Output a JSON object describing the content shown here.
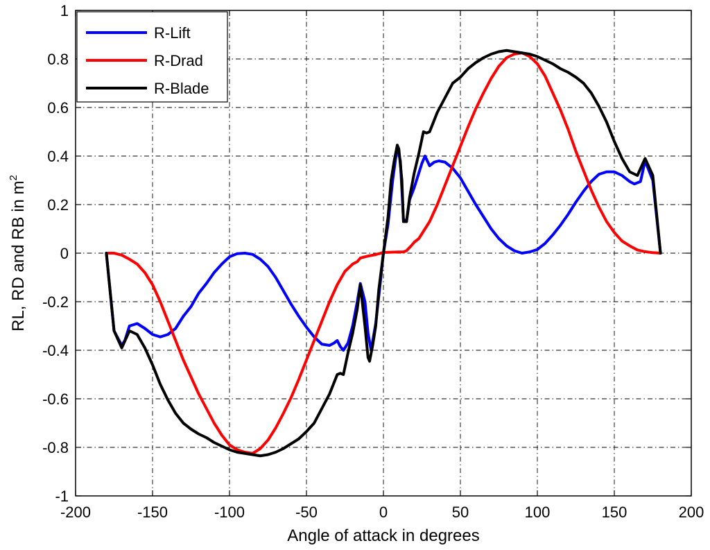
{
  "chart_data": {
    "type": "line",
    "xlabel": "Angle of attack in degrees",
    "ylabel": "RL, RD and RB in m",
    "ylabel_superscript": "2",
    "xlim": [
      -200,
      200
    ],
    "ylim": [
      -1,
      1
    ],
    "xticks": [
      -200,
      -150,
      -100,
      -50,
      0,
      50,
      100,
      150,
      200
    ],
    "yticks": [
      -1,
      -0.8,
      -0.6,
      -0.4,
      -0.2,
      0,
      0.2,
      0.4,
      0.6,
      0.8,
      1
    ],
    "xtick_labels": [
      "-200",
      "-150",
      "-100",
      "-50",
      "0",
      "50",
      "100",
      "150",
      "200"
    ],
    "ytick_labels": [
      "-1",
      "-0.8",
      "-0.6",
      "-0.4",
      "-0.2",
      "0",
      "0.2",
      "0.4",
      "0.6",
      "0.8",
      "1"
    ],
    "grid": true,
    "legend_position": "top-left",
    "series": [
      {
        "name": "R-Lift",
        "color": "#0000ff",
        "points": [
          [
            -180,
            0
          ],
          [
            -175,
            -0.32
          ],
          [
            -170,
            -0.38
          ],
          [
            -168,
            -0.36
          ],
          [
            -165,
            -0.3
          ],
          [
            -160,
            -0.29
          ],
          [
            -155,
            -0.31
          ],
          [
            -150,
            -0.335
          ],
          [
            -145,
            -0.345
          ],
          [
            -140,
            -0.335
          ],
          [
            -135,
            -0.31
          ],
          [
            -130,
            -0.26
          ],
          [
            -125,
            -0.22
          ],
          [
            -120,
            -0.165
          ],
          [
            -115,
            -0.125
          ],
          [
            -110,
            -0.08
          ],
          [
            -105,
            -0.045
          ],
          [
            -100,
            -0.015
          ],
          [
            -95,
            -0.002
          ],
          [
            -90,
            0
          ],
          [
            -85,
            -0.005
          ],
          [
            -80,
            -0.025
          ],
          [
            -75,
            -0.055
          ],
          [
            -70,
            -0.1
          ],
          [
            -65,
            -0.155
          ],
          [
            -60,
            -0.21
          ],
          [
            -55,
            -0.26
          ],
          [
            -50,
            -0.305
          ],
          [
            -45,
            -0.345
          ],
          [
            -40,
            -0.375
          ],
          [
            -35,
            -0.38
          ],
          [
            -32,
            -0.37
          ],
          [
            -30,
            -0.36
          ],
          [
            -28,
            -0.385
          ],
          [
            -26,
            -0.4
          ],
          [
            -23,
            -0.37
          ],
          [
            -20,
            -0.3
          ],
          [
            -17,
            -0.2
          ],
          [
            -15,
            -0.125
          ],
          [
            -12,
            -0.2
          ],
          [
            -10,
            -0.33
          ],
          [
            -8,
            -0.4
          ],
          [
            -5,
            -0.29
          ],
          [
            -2,
            -0.12
          ],
          [
            0,
            0
          ],
          [
            3,
            0.12
          ],
          [
            6,
            0.3
          ],
          [
            9,
            0.44
          ],
          [
            11,
            0.38
          ],
          [
            13,
            0.14
          ],
          [
            15,
            0.13
          ],
          [
            17,
            0.22
          ],
          [
            20,
            0.27
          ],
          [
            23,
            0.33
          ],
          [
            25,
            0.37
          ],
          [
            27,
            0.4
          ],
          [
            30,
            0.36
          ],
          [
            33,
            0.375
          ],
          [
            36,
            0.38
          ],
          [
            40,
            0.375
          ],
          [
            45,
            0.35
          ],
          [
            50,
            0.31
          ],
          [
            55,
            0.255
          ],
          [
            60,
            0.2
          ],
          [
            65,
            0.15
          ],
          [
            70,
            0.1
          ],
          [
            75,
            0.06
          ],
          [
            80,
            0.03
          ],
          [
            85,
            0.01
          ],
          [
            90,
            0
          ],
          [
            95,
            0.005
          ],
          [
            100,
            0.015
          ],
          [
            105,
            0.04
          ],
          [
            110,
            0.075
          ],
          [
            115,
            0.115
          ],
          [
            120,
            0.16
          ],
          [
            125,
            0.21
          ],
          [
            130,
            0.255
          ],
          [
            135,
            0.295
          ],
          [
            140,
            0.325
          ],
          [
            145,
            0.335
          ],
          [
            150,
            0.335
          ],
          [
            155,
            0.32
          ],
          [
            160,
            0.295
          ],
          [
            163,
            0.285
          ],
          [
            167,
            0.295
          ],
          [
            170,
            0.38
          ],
          [
            175,
            0.3
          ],
          [
            180,
            0
          ]
        ]
      },
      {
        "name": "R-Drad",
        "color": "#ff0000",
        "points": [
          [
            -180,
            0
          ],
          [
            -175,
            0
          ],
          [
            -170,
            -0.008
          ],
          [
            -165,
            -0.025
          ],
          [
            -160,
            -0.045
          ],
          [
            -155,
            -0.08
          ],
          [
            -150,
            -0.13
          ],
          [
            -145,
            -0.2
          ],
          [
            -140,
            -0.28
          ],
          [
            -135,
            -0.36
          ],
          [
            -130,
            -0.44
          ],
          [
            -125,
            -0.51
          ],
          [
            -120,
            -0.58
          ],
          [
            -115,
            -0.64
          ],
          [
            -110,
            -0.7
          ],
          [
            -105,
            -0.75
          ],
          [
            -100,
            -0.79
          ],
          [
            -95,
            -0.81
          ],
          [
            -90,
            -0.82
          ],
          [
            -85,
            -0.825
          ],
          [
            -80,
            -0.805
          ],
          [
            -75,
            -0.77
          ],
          [
            -70,
            -0.72
          ],
          [
            -65,
            -0.66
          ],
          [
            -60,
            -0.595
          ],
          [
            -55,
            -0.52
          ],
          [
            -50,
            -0.44
          ],
          [
            -45,
            -0.36
          ],
          [
            -40,
            -0.28
          ],
          [
            -35,
            -0.2
          ],
          [
            -30,
            -0.13
          ],
          [
            -25,
            -0.075
          ],
          [
            -20,
            -0.045
          ],
          [
            -17,
            -0.035
          ],
          [
            -15,
            -0.02
          ],
          [
            -10,
            -0.012
          ],
          [
            -5,
            -0.006
          ],
          [
            0,
            0.003
          ],
          [
            5,
            0.004
          ],
          [
            10,
            0.005
          ],
          [
            13,
            0.005
          ],
          [
            15,
            0.01
          ],
          [
            18,
            0.03
          ],
          [
            20,
            0.045
          ],
          [
            23,
            0.06
          ],
          [
            25,
            0.08
          ],
          [
            30,
            0.13
          ],
          [
            35,
            0.2
          ],
          [
            40,
            0.28
          ],
          [
            45,
            0.36
          ],
          [
            50,
            0.44
          ],
          [
            55,
            0.52
          ],
          [
            60,
            0.595
          ],
          [
            65,
            0.66
          ],
          [
            70,
            0.72
          ],
          [
            75,
            0.77
          ],
          [
            80,
            0.805
          ],
          [
            85,
            0.82
          ],
          [
            90,
            0.825
          ],
          [
            95,
            0.81
          ],
          [
            100,
            0.78
          ],
          [
            105,
            0.73
          ],
          [
            110,
            0.66
          ],
          [
            115,
            0.59
          ],
          [
            120,
            0.51
          ],
          [
            125,
            0.42
          ],
          [
            130,
            0.34
          ],
          [
            135,
            0.26
          ],
          [
            140,
            0.19
          ],
          [
            145,
            0.13
          ],
          [
            150,
            0.085
          ],
          [
            155,
            0.05
          ],
          [
            160,
            0.03
          ],
          [
            165,
            0.013
          ],
          [
            170,
            0.006
          ],
          [
            175,
            0.002
          ],
          [
            180,
            0
          ]
        ]
      },
      {
        "name": "R-Blade",
        "color": "#000000",
        "points": [
          [
            -180,
            0
          ],
          [
            -175,
            -0.32
          ],
          [
            -170,
            -0.39
          ],
          [
            -165,
            -0.32
          ],
          [
            -160,
            -0.335
          ],
          [
            -155,
            -0.39
          ],
          [
            -150,
            -0.46
          ],
          [
            -145,
            -0.54
          ],
          [
            -140,
            -0.605
          ],
          [
            -135,
            -0.66
          ],
          [
            -130,
            -0.7
          ],
          [
            -125,
            -0.725
          ],
          [
            -120,
            -0.745
          ],
          [
            -115,
            -0.76
          ],
          [
            -110,
            -0.78
          ],
          [
            -105,
            -0.795
          ],
          [
            -100,
            -0.81
          ],
          [
            -95,
            -0.82
          ],
          [
            -90,
            -0.825
          ],
          [
            -85,
            -0.83
          ],
          [
            -80,
            -0.835
          ],
          [
            -75,
            -0.83
          ],
          [
            -70,
            -0.82
          ],
          [
            -65,
            -0.805
          ],
          [
            -60,
            -0.785
          ],
          [
            -55,
            -0.765
          ],
          [
            -50,
            -0.735
          ],
          [
            -45,
            -0.7
          ],
          [
            -40,
            -0.64
          ],
          [
            -35,
            -0.58
          ],
          [
            -30,
            -0.5
          ],
          [
            -28,
            -0.495
          ],
          [
            -26,
            -0.5
          ],
          [
            -23,
            -0.41
          ],
          [
            -20,
            -0.33
          ],
          [
            -17,
            -0.23
          ],
          [
            -15,
            -0.13
          ],
          [
            -12,
            -0.3
          ],
          [
            -10,
            -0.43
          ],
          [
            -9,
            -0.445
          ],
          [
            -7,
            -0.38
          ],
          [
            -5,
            -0.3
          ],
          [
            -3,
            -0.15
          ],
          [
            0,
            0
          ],
          [
            3,
            0.15
          ],
          [
            5,
            0.3
          ],
          [
            7,
            0.38
          ],
          [
            9,
            0.445
          ],
          [
            10,
            0.43
          ],
          [
            12,
            0.3
          ],
          [
            13,
            0.13
          ],
          [
            15,
            0.13
          ],
          [
            17,
            0.23
          ],
          [
            20,
            0.33
          ],
          [
            23,
            0.41
          ],
          [
            26,
            0.5
          ],
          [
            28,
            0.495
          ],
          [
            30,
            0.5
          ],
          [
            35,
            0.58
          ],
          [
            40,
            0.64
          ],
          [
            45,
            0.7
          ],
          [
            50,
            0.725
          ],
          [
            55,
            0.76
          ],
          [
            60,
            0.785
          ],
          [
            65,
            0.805
          ],
          [
            70,
            0.82
          ],
          [
            75,
            0.83
          ],
          [
            80,
            0.835
          ],
          [
            85,
            0.83
          ],
          [
            90,
            0.825
          ],
          [
            95,
            0.82
          ],
          [
            100,
            0.81
          ],
          [
            105,
            0.795
          ],
          [
            110,
            0.78
          ],
          [
            115,
            0.76
          ],
          [
            120,
            0.745
          ],
          [
            125,
            0.725
          ],
          [
            130,
            0.7
          ],
          [
            135,
            0.66
          ],
          [
            140,
            0.605
          ],
          [
            145,
            0.54
          ],
          [
            150,
            0.46
          ],
          [
            155,
            0.39
          ],
          [
            160,
            0.335
          ],
          [
            165,
            0.32
          ],
          [
            170,
            0.39
          ],
          [
            175,
            0.32
          ],
          [
            180,
            0
          ]
        ]
      }
    ]
  }
}
